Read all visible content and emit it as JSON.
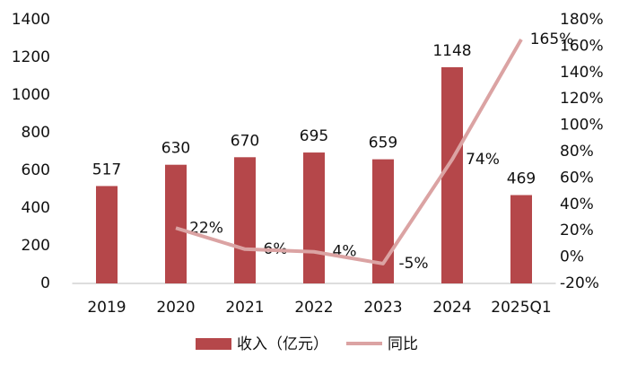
{
  "chart_data": {
    "type": "bar-line",
    "categories": [
      "2019",
      "2020",
      "2021",
      "2022",
      "2023",
      "2024",
      "2025Q1"
    ],
    "series": [
      {
        "name": "收入（亿元）",
        "type": "bar",
        "color": "#b5474a",
        "values": [
          517,
          630,
          670,
          695,
          659,
          1148,
          469
        ]
      },
      {
        "name": "同比",
        "type": "line",
        "axis": "y2",
        "color": "#dba3a3",
        "values": [
          null,
          22,
          6,
          4,
          -5,
          74,
          165
        ],
        "value_labels": [
          null,
          "22%",
          "6%",
          "4%",
          "-5%",
          "74%",
          "165%"
        ]
      }
    ],
    "ylim": [
      0,
      1400
    ],
    "yticks": [
      0,
      200,
      400,
      600,
      800,
      1000,
      1200,
      1400
    ],
    "y2lim": [
      -20,
      180
    ],
    "y2ticks": [
      {
        "value": -20,
        "label": "-20%"
      },
      {
        "value": 0,
        "label": "0%"
      },
      {
        "value": 20,
        "label": "20%"
      },
      {
        "value": 40,
        "label": "40%"
      },
      {
        "value": 60,
        "label": "60%"
      },
      {
        "value": 80,
        "label": "80%"
      },
      {
        "value": 100,
        "label": "100%"
      },
      {
        "value": 120,
        "label": "120%"
      },
      {
        "value": 140,
        "label": "140%"
      },
      {
        "value": 160,
        "label": "160%"
      },
      {
        "value": 180,
        "label": "180%"
      }
    ],
    "legend": "bottom"
  }
}
